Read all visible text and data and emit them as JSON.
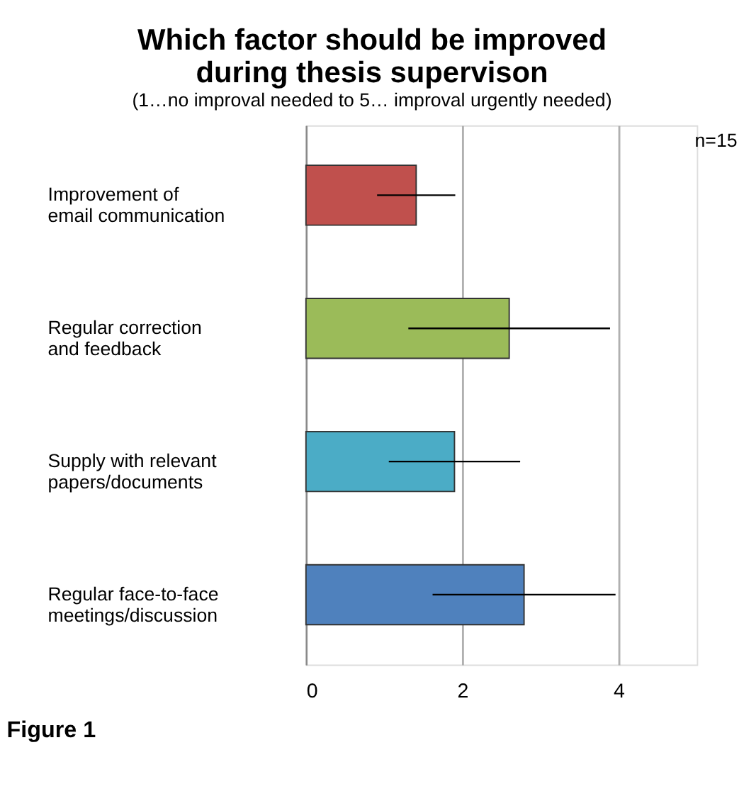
{
  "chart_data": {
    "type": "bar",
    "orientation": "horizontal",
    "title": "Which factor should be improved during thesis supervison",
    "subtitle": "(1…no improval needed to 5… improval urgently needed)",
    "categories": [
      "Improvement of\nemail communication",
      "Regular correction\nand feedback",
      "Supply with relevant\npapers/documents",
      "Regular face-to-face\nmeetings/discussion"
    ],
    "values": [
      1.41,
      2.6,
      1.9,
      2.79
    ],
    "errors": [
      0.5,
      1.29,
      0.84,
      1.17
    ],
    "colors": [
      "#c0504d",
      "#9bbb59",
      "#4bacc6",
      "#4f81bd"
    ],
    "xlim": [
      0,
      5
    ],
    "xticks": [
      0,
      2,
      4
    ],
    "grid": "x",
    "annotations": [
      "n=15",
      "Figure 1"
    ]
  }
}
